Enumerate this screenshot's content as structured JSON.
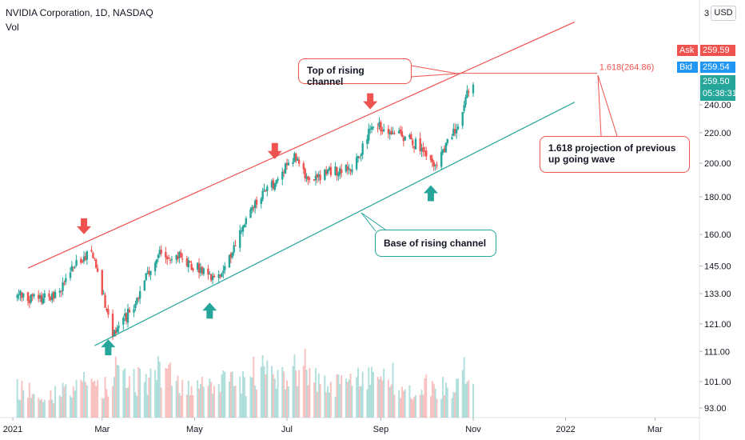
{
  "header": {
    "title": "NVIDIA Corporation, 1D, NASDAQ",
    "volume_label": "Vol",
    "currency_button": "USD"
  },
  "quotes": {
    "ask_label": "Ask",
    "ask_value": "259.59",
    "bid_label": "Bid",
    "bid_value": "259.54",
    "last_price": "259.50",
    "countdown": "05:38:31"
  },
  "colors": {
    "up": "#26a69a",
    "down": "#ef5350",
    "ask_tag": "#ef5350",
    "bid_tag": "#2196f3",
    "upper_channel": "#ef5350",
    "lower_channel": "#26a69a",
    "projection": "#ef5350"
  },
  "annotations": {
    "top_channel": "Top of rising channel",
    "projection_note": "1.618 projection of previous up going wave",
    "base_channel": "Base of rising channel",
    "fib_level": "1.618(264.86)"
  },
  "chart_data": {
    "type": "line",
    "title": "NVIDIA Corporation, 1D, NASDAQ",
    "price_axis": {
      "scale": "log",
      "ticks": [
        "93.00",
        "101.00",
        "111.00",
        "121.00",
        "133.00",
        "145.00",
        "160.00",
        "180.00",
        "200.00",
        "220.00",
        "240.00"
      ],
      "partial_top_tick": "3"
    },
    "x_axis": {
      "ticks": [
        "2021",
        "Mar",
        "May",
        "Jul",
        "Sep",
        "Nov",
        "2022",
        "Mar"
      ]
    },
    "x": [
      "2021-01-04",
      "2021-01-15",
      "2021-01-29",
      "2021-02-12",
      "2021-02-22",
      "2021-03-08",
      "2021-03-22",
      "2021-04-06",
      "2021-04-20",
      "2021-05-03",
      "2021-05-14",
      "2021-05-25",
      "2021-06-08",
      "2021-06-22",
      "2021-07-06",
      "2021-07-16",
      "2021-07-30",
      "2021-08-13",
      "2021-08-27",
      "2021-09-10",
      "2021-09-24",
      "2021-10-08",
      "2021-10-22",
      "2021-11-01"
    ],
    "series": [
      {
        "values": [
          132,
          131,
          132,
          147,
          152,
          117,
          128,
          150,
          150,
          144,
          138,
          150,
          175,
          188,
          205,
          188,
          195,
          197,
          225,
          220,
          213,
          197,
          228,
          259.5
        ]
      }
    ],
    "volume": [
      3.2,
      2.6,
      2.9,
      3.8,
      3.4,
      5.5,
      4.2,
      5.1,
      3.8,
      3.4,
      4.6,
      4.0,
      5.4,
      4.8,
      6.0,
      4.3,
      3.8,
      5.0,
      4.6,
      3.2,
      3.7,
      3.4,
      5.2,
      4.7
    ],
    "channel": {
      "upper": {
        "from": [
          "2021-01-11",
          144
        ],
        "to": [
          "2022-01-07",
          311
        ]
      },
      "lower": {
        "from": [
          "2021-02-24",
          113
        ],
        "to": [
          "2022-01-07",
          242
        ]
      }
    },
    "projection_level": {
      "label": "1.618(264.86)",
      "value": 264.86
    },
    "bearish_arrows": [
      "2021-02-17",
      "2021-06-23",
      "2021-08-25"
    ],
    "bullish_arrows": [
      "2021-03-05",
      "2021-05-11",
      "2021-10-04"
    ]
  }
}
